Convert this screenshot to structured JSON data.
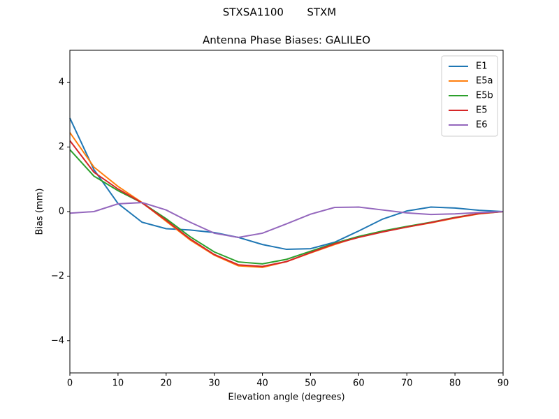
{
  "chart_data": {
    "type": "line",
    "suptitle": "STXSA1100       STXM",
    "title": "Antenna Phase Biases: GALILEO",
    "x_label": "Elevation angle (degrees)",
    "y_label": "Bias (mm)",
    "x": [
      0,
      5,
      10,
      15,
      20,
      25,
      30,
      35,
      40,
      45,
      50,
      55,
      60,
      65,
      70,
      75,
      80,
      85,
      90
    ],
    "series": [
      {
        "name": "E1",
        "color": "#1f77b4",
        "values": [
          2.9,
          1.3,
          0.25,
          -0.33,
          -0.53,
          -0.57,
          -0.65,
          -0.8,
          -1.02,
          -1.17,
          -1.15,
          -0.95,
          -0.6,
          -0.23,
          0.02,
          0.14,
          0.11,
          0.04,
          0
        ]
      },
      {
        "name": "E5a",
        "color": "#ff7f0e",
        "values": [
          2.45,
          1.38,
          0.78,
          0.28,
          -0.3,
          -0.88,
          -1.35,
          -1.68,
          -1.73,
          -1.55,
          -1.28,
          -1.02,
          -0.78,
          -0.62,
          -0.48,
          -0.35,
          -0.2,
          -0.07,
          0
        ]
      },
      {
        "name": "E5b",
        "color": "#2ca02c",
        "values": [
          1.92,
          1.1,
          0.65,
          0.27,
          -0.22,
          -0.78,
          -1.25,
          -1.56,
          -1.62,
          -1.48,
          -1.23,
          -0.98,
          -0.77,
          -0.6,
          -0.46,
          -0.33,
          -0.18,
          -0.06,
          0
        ]
      },
      {
        "name": "E5",
        "color": "#d62728",
        "values": [
          2.2,
          1.22,
          0.7,
          0.27,
          -0.27,
          -0.85,
          -1.33,
          -1.65,
          -1.7,
          -1.55,
          -1.27,
          -1.0,
          -0.8,
          -0.63,
          -0.48,
          -0.34,
          -0.19,
          -0.06,
          0
        ]
      },
      {
        "name": "E6",
        "color": "#9467bd",
        "values": [
          -0.05,
          0.0,
          0.24,
          0.28,
          0.05,
          -0.33,
          -0.67,
          -0.8,
          -0.67,
          -0.38,
          -0.08,
          0.13,
          0.14,
          0.05,
          -0.04,
          -0.09,
          -0.07,
          -0.03,
          0
        ]
      }
    ],
    "xlim": [
      0,
      90
    ],
    "xticks": [
      0,
      10,
      20,
      30,
      40,
      50,
      60,
      70,
      80,
      90
    ],
    "ylim": [
      -5,
      5
    ],
    "yticks": [
      {
        "value": -4,
        "label": "−4"
      },
      {
        "value": -2,
        "label": "−2"
      },
      0,
      2,
      4
    ],
    "grid": false,
    "legend": "upper-right"
  }
}
